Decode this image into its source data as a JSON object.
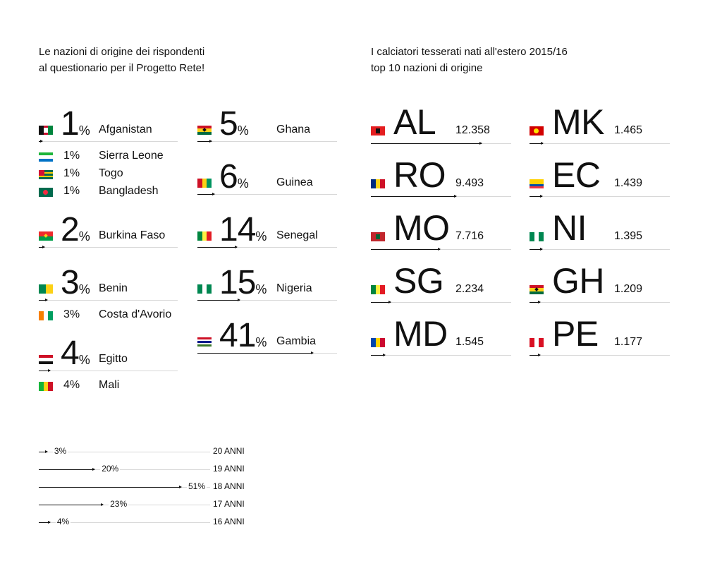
{
  "left_title": [
    "Le nazioni di origine dei rispondenti",
    "al questionario per il Progetto Rete!"
  ],
  "right_title": [
    "I calciatori tesserati nati all'estero 2015/16",
    "top 10 nazioni di origine"
  ],
  "colors": {
    "text": "#111111",
    "rule": "#d8d8d8",
    "bar": "#111111"
  },
  "chart_data": [
    {
      "type": "bar",
      "title": "Le nazioni di origine dei rispondenti al questionario per il Progetto Rete!",
      "unit": "%",
      "groups": [
        {
          "value": 1,
          "countries": [
            "Afganistan",
            "Sierra Leone",
            "Togo",
            "Bangladesh"
          ]
        },
        {
          "value": 2,
          "countries": [
            "Burkina Faso"
          ]
        },
        {
          "value": 3,
          "countries": [
            "Benin",
            "Costa d'Avorio"
          ]
        },
        {
          "value": 4,
          "countries": [
            "Egitto",
            "Mali"
          ]
        },
        {
          "value": 5,
          "countries": [
            "Ghana"
          ]
        },
        {
          "value": 6,
          "countries": [
            "Guinea"
          ]
        },
        {
          "value": 14,
          "countries": [
            "Senegal"
          ]
        },
        {
          "value": 15,
          "countries": [
            "Nigeria"
          ]
        },
        {
          "value": 41,
          "countries": [
            "Gambia"
          ]
        }
      ],
      "flags": {
        "Afganistan": {
          "dir": "v",
          "stripes": [
            "#111111",
            "#c8102e",
            "#00843d"
          ],
          "emblem": "#ffffff"
        },
        "Sierra Leone": {
          "dir": "h",
          "stripes": [
            "#1eb53a",
            "#ffffff",
            "#0072c6"
          ]
        },
        "Togo": {
          "dir": "h",
          "stripes": [
            "#006a4e",
            "#ffce00",
            "#006a4e",
            "#ffce00",
            "#006a4e"
          ],
          "canton": "#d21034"
        },
        "Bangladesh": {
          "dir": "h",
          "stripes": [
            "#006a4e"
          ],
          "disc": "#f42a41"
        },
        "Burkina Faso": {
          "dir": "h",
          "stripes": [
            "#ef2b2d",
            "#009e49"
          ],
          "star": "#fcd116"
        },
        "Benin": {
          "dir": "v",
          "stripes": [
            "#008751",
            "#fcd116"
          ],
          "split": [
            "#fcd116",
            "#e8112d"
          ]
        },
        "Costa d'Avorio": {
          "dir": "v",
          "stripes": [
            "#f77f00",
            "#ffffff",
            "#009e60"
          ]
        },
        "Egitto": {
          "dir": "h",
          "stripes": [
            "#ce1126",
            "#ffffff",
            "#111111"
          ]
        },
        "Mali": {
          "dir": "v",
          "stripes": [
            "#14b53a",
            "#fcd116",
            "#ce1126"
          ]
        },
        "Ghana": {
          "dir": "h",
          "stripes": [
            "#ce1126",
            "#fcd116",
            "#006b3f"
          ],
          "star": "#111111"
        },
        "Guinea": {
          "dir": "v",
          "stripes": [
            "#ce1126",
            "#fcd116",
            "#009460"
          ]
        },
        "Senegal": {
          "dir": "v",
          "stripes": [
            "#00853f",
            "#fdef42",
            "#e31b23"
          ]
        },
        "Nigeria": {
          "dir": "v",
          "stripes": [
            "#008751",
            "#ffffff",
            "#008751"
          ]
        },
        "Gambia": {
          "dir": "h",
          "stripes": [
            "#ce1126",
            "#ffffff",
            "#0c1c8c",
            "#ffffff",
            "#3a7728"
          ]
        }
      }
    },
    {
      "type": "bar",
      "title": "I calciatori tesserati nati all'estero 2015/16 top 10 nazioni di origine",
      "categories": [
        "AL",
        "RO",
        "MO",
        "SG",
        "MD",
        "MK",
        "EC",
        "NI",
        "GH",
        "PE"
      ],
      "values": [
        12358,
        9493,
        7716,
        2234,
        1545,
        1465,
        1439,
        1395,
        1209,
        1177
      ],
      "labels": [
        "12.358",
        "9.493",
        "7.716",
        "2.234",
        "1.545",
        "1.465",
        "1.439",
        "1.395",
        "1.209",
        "1.177"
      ],
      "flags": {
        "AL": {
          "dir": "h",
          "stripes": [
            "#e41e20"
          ],
          "emblem": "#111111"
        },
        "RO": {
          "dir": "v",
          "stripes": [
            "#002b7f",
            "#fcd116",
            "#ce1126"
          ]
        },
        "MO": {
          "dir": "h",
          "stripes": [
            "#c1272d"
          ],
          "emblem": "#006233"
        },
        "SG": {
          "dir": "v",
          "stripes": [
            "#00853f",
            "#fdef42",
            "#e31b23"
          ]
        },
        "MD": {
          "dir": "v",
          "stripes": [
            "#0046ae",
            "#ffd200",
            "#cc092f"
          ]
        },
        "MK": {
          "dir": "h",
          "stripes": [
            "#d20000"
          ],
          "disc": "#ffe600"
        },
        "EC": {
          "dir": "h",
          "stripes": [
            "#ffd100",
            "#ffd100",
            "#034ea2",
            "#ef3340"
          ]
        },
        "NI": {
          "dir": "v",
          "stripes": [
            "#008751",
            "#ffffff",
            "#008751"
          ]
        },
        "GH": {
          "dir": "h",
          "stripes": [
            "#ce1126",
            "#fcd116",
            "#006b3f"
          ],
          "star": "#111111"
        },
        "PE": {
          "dir": "v",
          "stripes": [
            "#d91023",
            "#ffffff",
            "#d91023"
          ]
        }
      }
    },
    {
      "type": "bar",
      "title": "",
      "categories": [
        "20 ANNI",
        "19 ANNI",
        "18 ANNI",
        "17 ANNI",
        "16 ANNI"
      ],
      "values": [
        3,
        20,
        51,
        23,
        4
      ],
      "labels": [
        "3%",
        "20%",
        "51%",
        "23%",
        "4%"
      ],
      "unit": "%"
    }
  ]
}
